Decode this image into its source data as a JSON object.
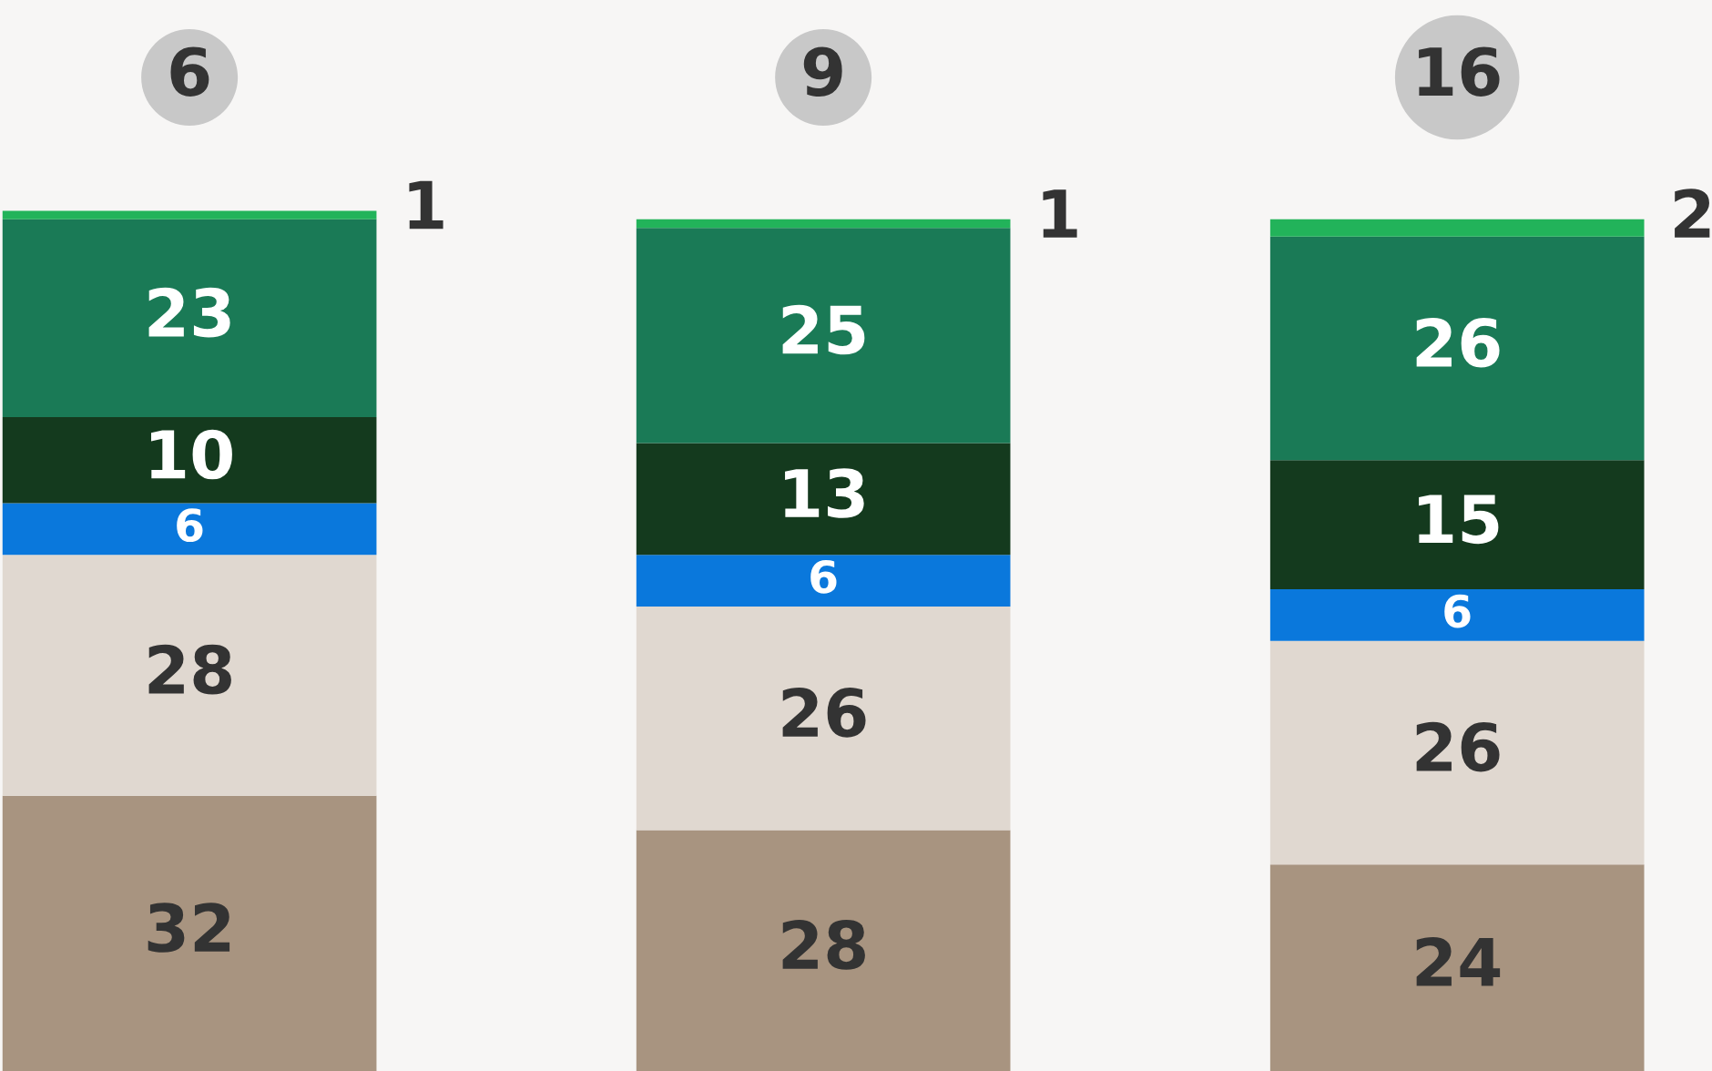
{
  "chart_data": {
    "type": "bar",
    "stacked": true,
    "data_labels": true,
    "legend": false,
    "categories": [
      null,
      null,
      null
    ],
    "series": [
      {
        "color": "#a89480",
        "values": [
          32,
          28,
          24
        ]
      },
      {
        "color": "#e0d8d0",
        "values": [
          28,
          26,
          26
        ]
      },
      {
        "color": "#0a78dc",
        "values": [
          6,
          6,
          6
        ]
      },
      {
        "color": "#143a1e",
        "values": [
          10,
          13,
          15
        ]
      },
      {
        "color": "#1a7a56",
        "values": [
          23,
          25,
          26
        ]
      },
      {
        "color": "#22b35a",
        "values": [
          1,
          1,
          2
        ]
      }
    ],
    "annotations": [
      "6",
      "9",
      "16"
    ]
  }
}
